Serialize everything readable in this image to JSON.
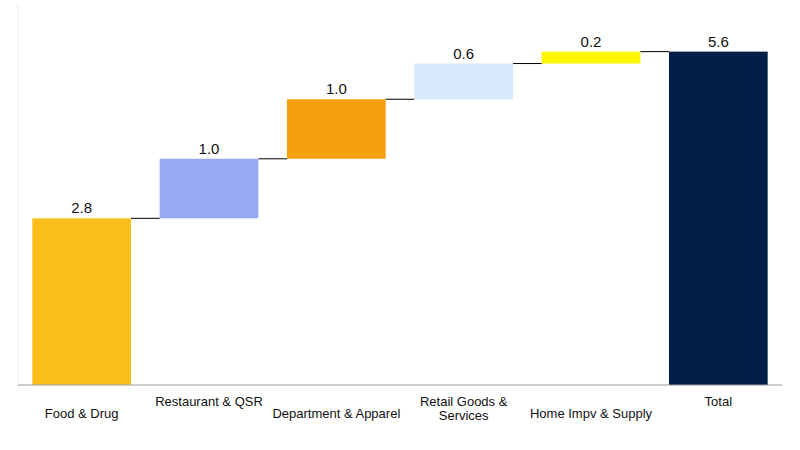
{
  "chart_data": {
    "type": "waterfall",
    "categories": [
      "Food & Drug",
      "Restaurant & QSR",
      "Department & Apparel",
      "Retail Goods & Services",
      "Home Impv & Supply",
      "Total"
    ],
    "values": [
      2.8,
      1.0,
      1.0,
      0.6,
      0.2,
      5.6
    ],
    "value_labels": [
      "2.8",
      "1.0",
      "1.0",
      "0.6",
      "0.2",
      "5.6"
    ],
    "colors": [
      "#fbbf1a",
      "#98a8f5",
      "#f5a00e",
      "#d6e8fb",
      "#fff700",
      "#041e4a"
    ],
    "ylim": [
      0,
      6.4
    ],
    "data_labels": true,
    "tick_labels": false,
    "grid": false
  }
}
